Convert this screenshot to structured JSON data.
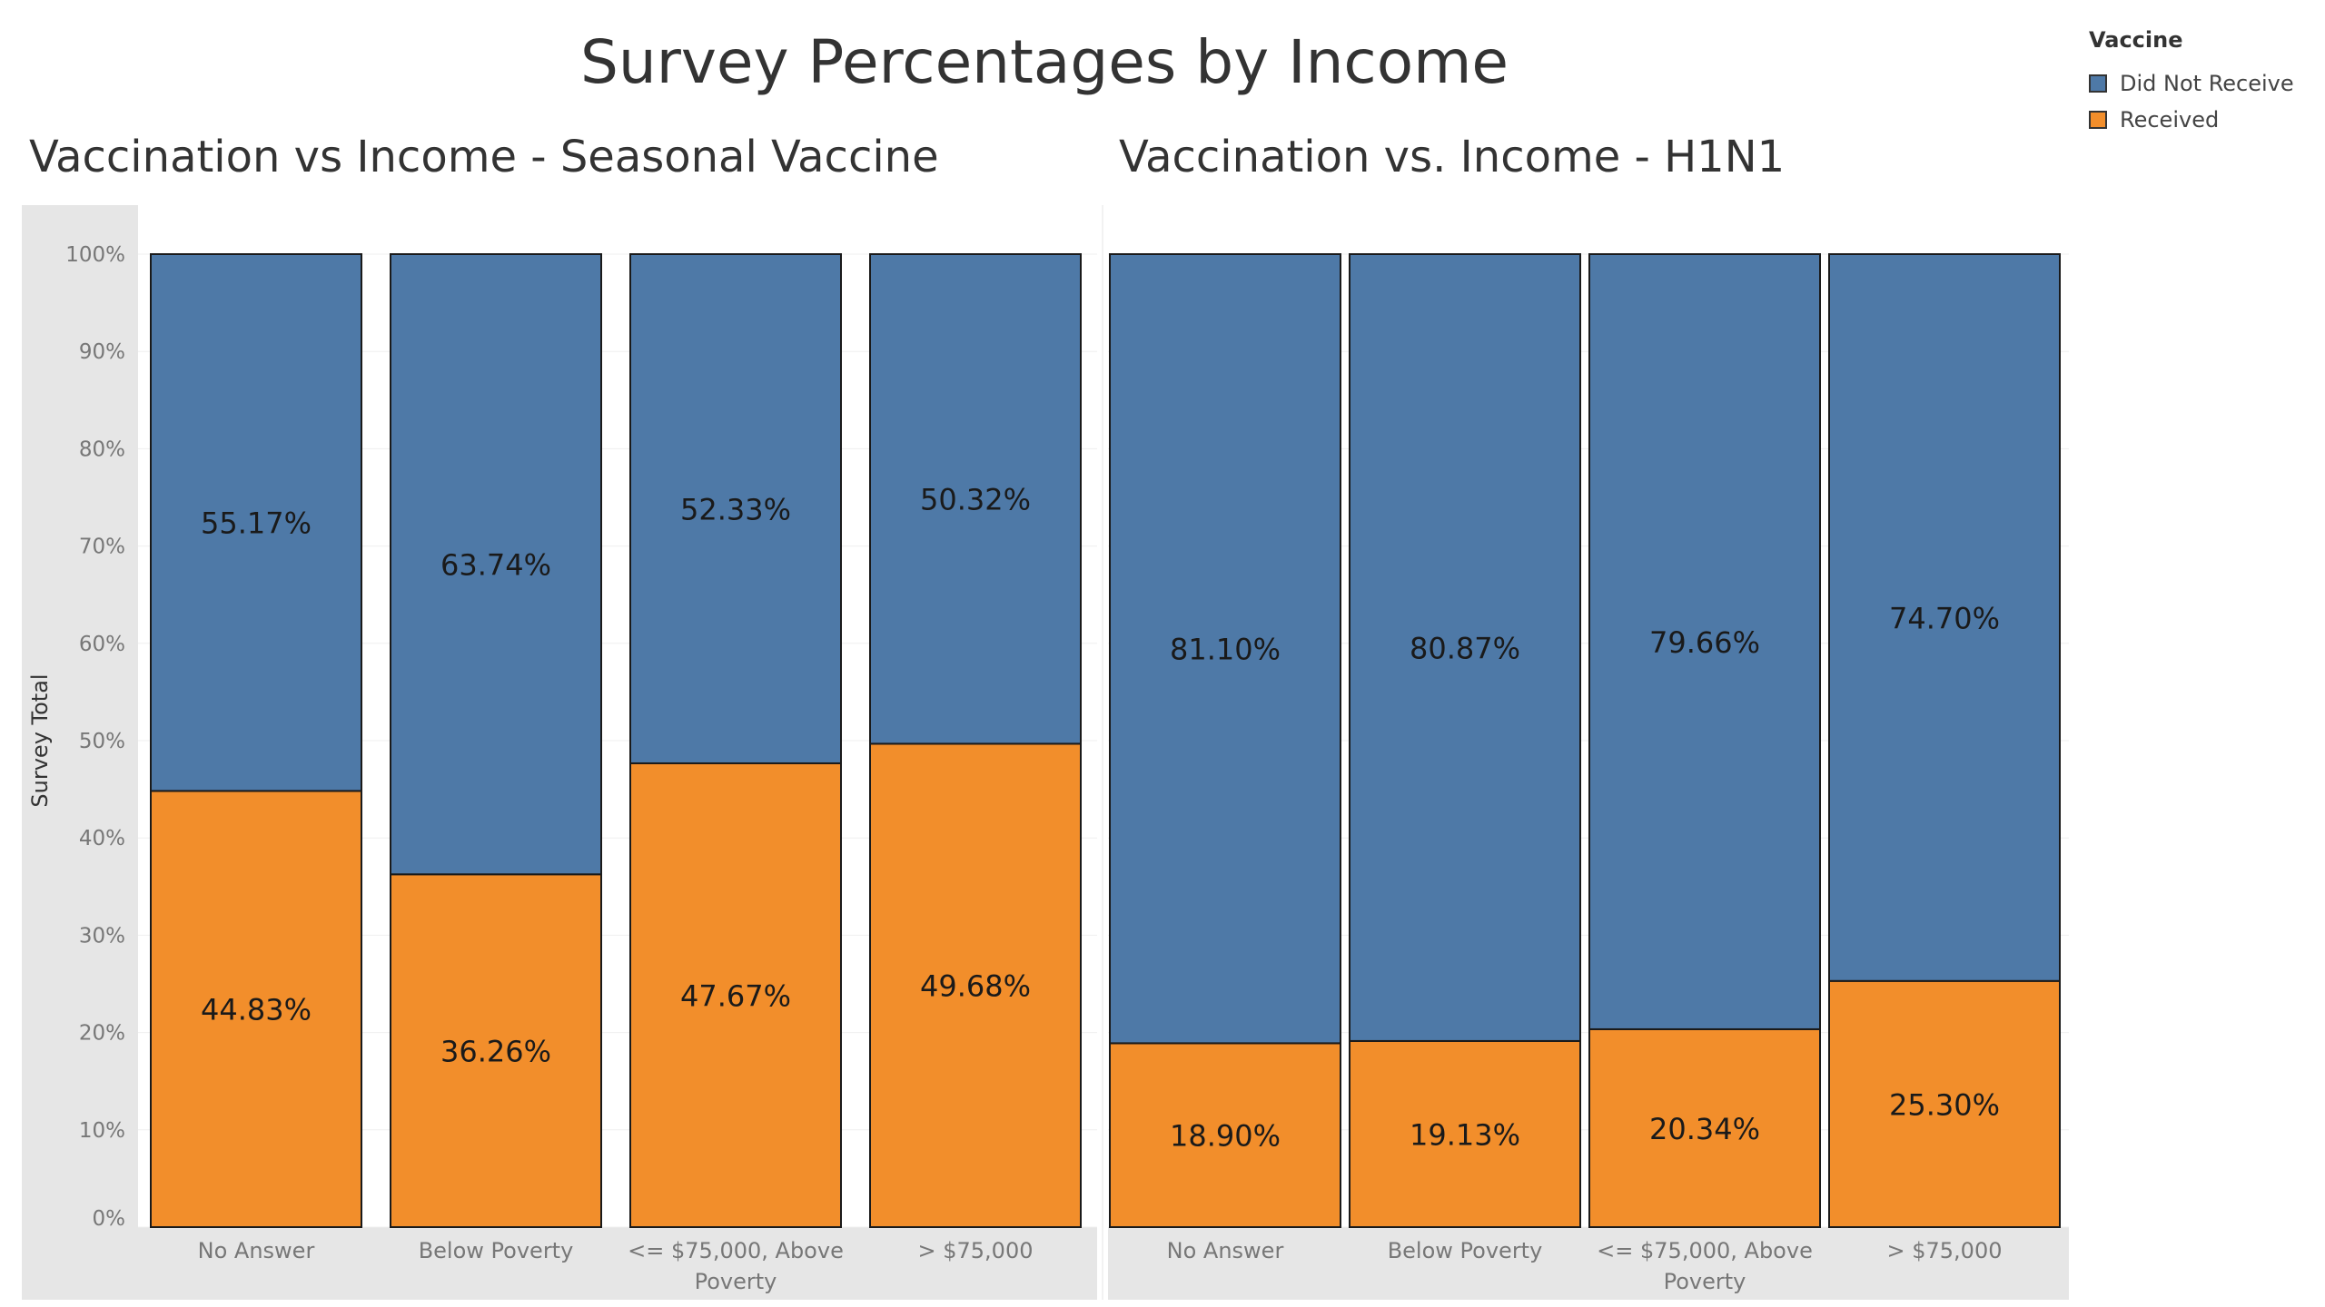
{
  "title": "Survey Percentages by Income",
  "legend": {
    "title": "Vaccine",
    "items": [
      {
        "label": "Did Not Receive",
        "color": "#4e79a7"
      },
      {
        "label": "Received",
        "color": "#f28e2b"
      }
    ]
  },
  "chart_data": [
    {
      "type": "bar",
      "stacked": true,
      "title": "Vaccination vs Income - Seasonal Vaccine",
      "ylabel": "Survey Total",
      "xlabel": "",
      "ylim": [
        0,
        100
      ],
      "yticks": [
        "0%",
        "10%",
        "20%",
        "30%",
        "40%",
        "50%",
        "60%",
        "70%",
        "80%",
        "90%",
        "100%"
      ],
      "categories": [
        [
          "No Answer"
        ],
        [
          "Below Poverty"
        ],
        [
          "<= $75,000, Above",
          "Poverty"
        ],
        [
          "> $75,000"
        ]
      ],
      "series": [
        {
          "name": "Received",
          "color": "#f28e2b",
          "values": [
            44.83,
            36.26,
            47.67,
            49.68
          ],
          "labels": [
            "44.83%",
            "36.26%",
            "47.67%",
            "49.68%"
          ]
        },
        {
          "name": "Did Not Receive",
          "color": "#4e79a7",
          "values": [
            55.17,
            63.74,
            52.33,
            50.32
          ],
          "labels": [
            "55.17%",
            "63.74%",
            "52.33%",
            "50.32%"
          ]
        }
      ]
    },
    {
      "type": "bar",
      "stacked": true,
      "title": "Vaccination vs. Income - H1N1",
      "ylabel": "",
      "xlabel": "",
      "ylim": [
        0,
        100
      ],
      "categories": [
        [
          "No Answer"
        ],
        [
          "Below Poverty"
        ],
        [
          "<= $75,000, Above",
          "Poverty"
        ],
        [
          "> $75,000"
        ]
      ],
      "series": [
        {
          "name": "Received",
          "color": "#f28e2b",
          "values": [
            18.9,
            19.13,
            20.34,
            25.3
          ],
          "labels": [
            "18.90%",
            "19.13%",
            "20.34%",
            "25.30%"
          ]
        },
        {
          "name": "Did Not Receive",
          "color": "#4e79a7",
          "values": [
            81.1,
            80.87,
            79.66,
            74.7
          ],
          "labels": [
            "81.10%",
            "80.87%",
            "79.66%",
            "74.70%"
          ]
        }
      ]
    }
  ]
}
